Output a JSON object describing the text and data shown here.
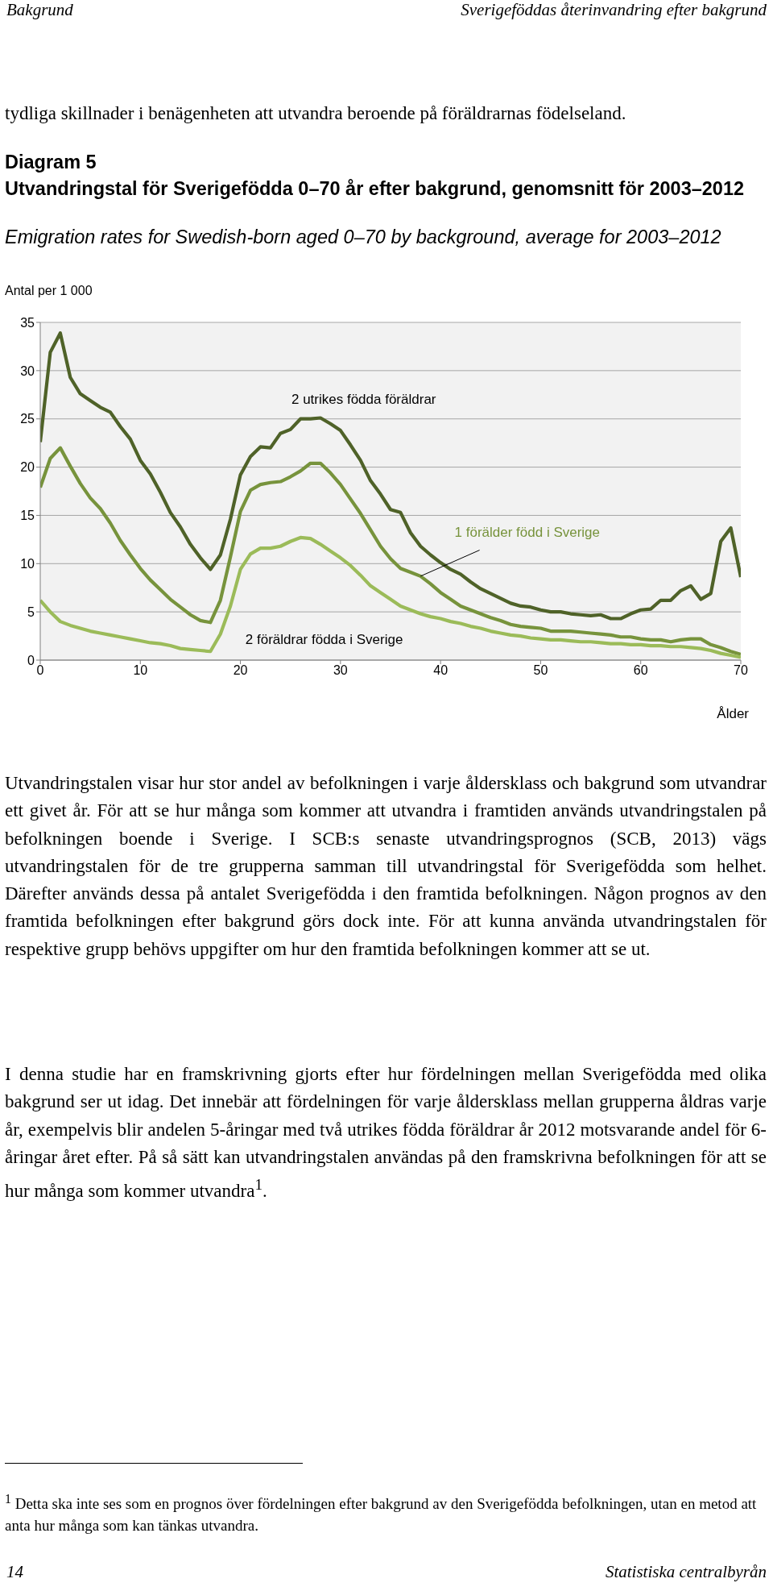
{
  "chart_data": {
    "type": "line",
    "title": "Utvandringstal för Sverigefödda 0–70 år efter bakgrund, genomsnitt för 2003–2012",
    "subtitle": "Emigration rates for Swedish-born aged 0–70 by background, average for 2003–2012",
    "ylabel": "Antal per 1 000",
    "xlabel": "Ålder",
    "x": [
      0,
      1,
      2,
      3,
      4,
      5,
      6,
      7,
      8,
      9,
      10,
      11,
      12,
      13,
      14,
      15,
      16,
      17,
      18,
      19,
      20,
      21,
      22,
      23,
      24,
      25,
      26,
      27,
      28,
      29,
      30,
      31,
      32,
      33,
      34,
      35,
      36,
      37,
      38,
      39,
      40,
      41,
      42,
      43,
      44,
      45,
      46,
      47,
      48,
      49,
      50,
      51,
      52,
      53,
      54,
      55,
      56,
      57,
      58,
      59,
      60,
      61,
      62,
      63,
      64,
      65,
      66,
      67,
      68,
      69,
      70
    ],
    "series": [
      {
        "name": "2 utrikes födda föräldrar",
        "color": "#4f6228",
        "values": [
          22.6,
          31.9,
          33.9,
          29.3,
          27.6,
          26.9,
          26.2,
          25.7,
          24.2,
          22.9,
          20.7,
          19.3,
          17.4,
          15.3,
          13.8,
          12.0,
          10.6,
          9.4,
          10.9,
          14.6,
          19.2,
          21.1,
          22.1,
          22.0,
          23.5,
          23.9,
          25.0,
          25.0,
          25.1,
          24.5,
          23.8,
          22.3,
          20.7,
          18.6,
          17.2,
          15.6,
          15.3,
          13.2,
          11.8,
          10.9,
          10.1,
          9.4,
          8.9,
          8.1,
          7.4,
          6.9,
          6.4,
          5.9,
          5.6,
          5.5,
          5.2,
          5.0,
          5.0,
          4.8,
          4.7,
          4.6,
          4.7,
          4.3,
          4.3,
          4.8,
          5.2,
          5.3,
          6.2,
          6.2,
          7.2,
          7.7,
          6.3,
          6.9,
          12.3,
          13.7,
          8.6
        ]
      },
      {
        "name": "1 förälder född i Sverige",
        "color": "#77933c",
        "values": [
          17.9,
          20.9,
          22.0,
          20.1,
          18.3,
          16.8,
          15.7,
          14.2,
          12.4,
          10.9,
          9.5,
          8.3,
          7.3,
          6.3,
          5.5,
          4.7,
          4.1,
          3.9,
          6.2,
          10.7,
          15.4,
          17.6,
          18.2,
          18.4,
          18.5,
          19.0,
          19.6,
          20.4,
          20.4,
          19.4,
          18.2,
          16.7,
          15.2,
          13.5,
          11.8,
          10.5,
          9.5,
          9.1,
          8.7,
          7.9,
          7.0,
          6.3,
          5.6,
          5.2,
          4.8,
          4.4,
          4.1,
          3.7,
          3.5,
          3.4,
          3.3,
          3.0,
          3.0,
          3.0,
          2.9,
          2.8,
          2.7,
          2.6,
          2.4,
          2.4,
          2.2,
          2.1,
          2.1,
          1.9,
          2.1,
          2.2,
          2.2,
          1.6,
          1.3,
          0.9,
          0.6
        ]
      },
      {
        "name": "2 föräldrar födda i Sverige",
        "color": "#9bbb59",
        "values": [
          6.2,
          5.0,
          4.0,
          3.6,
          3.3,
          3.0,
          2.8,
          2.6,
          2.4,
          2.2,
          2.0,
          1.8,
          1.7,
          1.5,
          1.2,
          1.1,
          1.0,
          0.9,
          2.7,
          5.6,
          9.4,
          11.0,
          11.6,
          11.6,
          11.8,
          12.3,
          12.7,
          12.6,
          12.0,
          11.3,
          10.6,
          9.8,
          8.8,
          7.7,
          7.0,
          6.3,
          5.6,
          5.2,
          4.8,
          4.5,
          4.3,
          4.0,
          3.8,
          3.5,
          3.3,
          3.0,
          2.8,
          2.6,
          2.5,
          2.3,
          2.2,
          2.1,
          2.1,
          2.0,
          1.9,
          1.9,
          1.8,
          1.7,
          1.7,
          1.6,
          1.6,
          1.5,
          1.5,
          1.4,
          1.4,
          1.3,
          1.2,
          1.0,
          0.7,
          0.5,
          0.3
        ]
      }
    ],
    "xlim": [
      0,
      70
    ],
    "xticks": [
      0,
      10,
      20,
      30,
      40,
      50,
      60,
      70
    ],
    "ylim": [
      0,
      35
    ],
    "yticks": [
      0,
      5,
      10,
      15,
      20,
      25,
      30,
      35
    ],
    "grid": "y",
    "legend": false,
    "marker": "none",
    "line_style": "solid",
    "annotations": [
      "Bakgrund",
      "Sverigeföddas återinvandring efter bakgrund",
      "tydliga skillnader i benägenheten att utvandra beroende på föräldrarnas födelseland.",
      "Diagram 5",
      "Utvandringstalen visar hur stor andel av befolkningen i varje åldersklass och bakgrund som utvandrar ett givet år. För att se hur många som kommer att utvandra i framtiden används utvandringstalen på befolkningen boende i Sverige. I SCB:s senaste utvandringsprognos (SCB, 2013) vägs utvandringstalen för de tre grupperna samman till utvandringstal för Sverigefödda som helhet. Därefter används dessa på antalet Sverigefödda i den framtida befolkningen. Någon prognos av den framtida befolkningen efter bakgrund görs dock inte. För att kunna använda utvandringstalen för respektive grupp behövs uppgifter om hur den framtida befolkningen kommer att se ut.",
      "I denna studie har en framskrivning gjorts efter hur fördelningen mellan Sverigefödda med olika bakgrund ser ut idag. Det innebär att fördelningen för varje åldersklass mellan grupperna åldras varje år, exempelvis blir andelen 5-åringar med två utrikes födda föräldrar år 2012 motsvarande andel för 6-åringar året efter. På så sätt kan utvandringstalen användas på den framskrivna befolkningen för att se hur många som kommer utvandra$^{1}$.",
      "$^{1}$ Detta ska inte ses som en prognos över fördelningen efter bakgrund av den Sverigefödda befolkningen, utan en metod att anta hur många som kan tänkas utvandra.",
      "14",
      "Statistiska centralbyrån"
    ]
  }
}
